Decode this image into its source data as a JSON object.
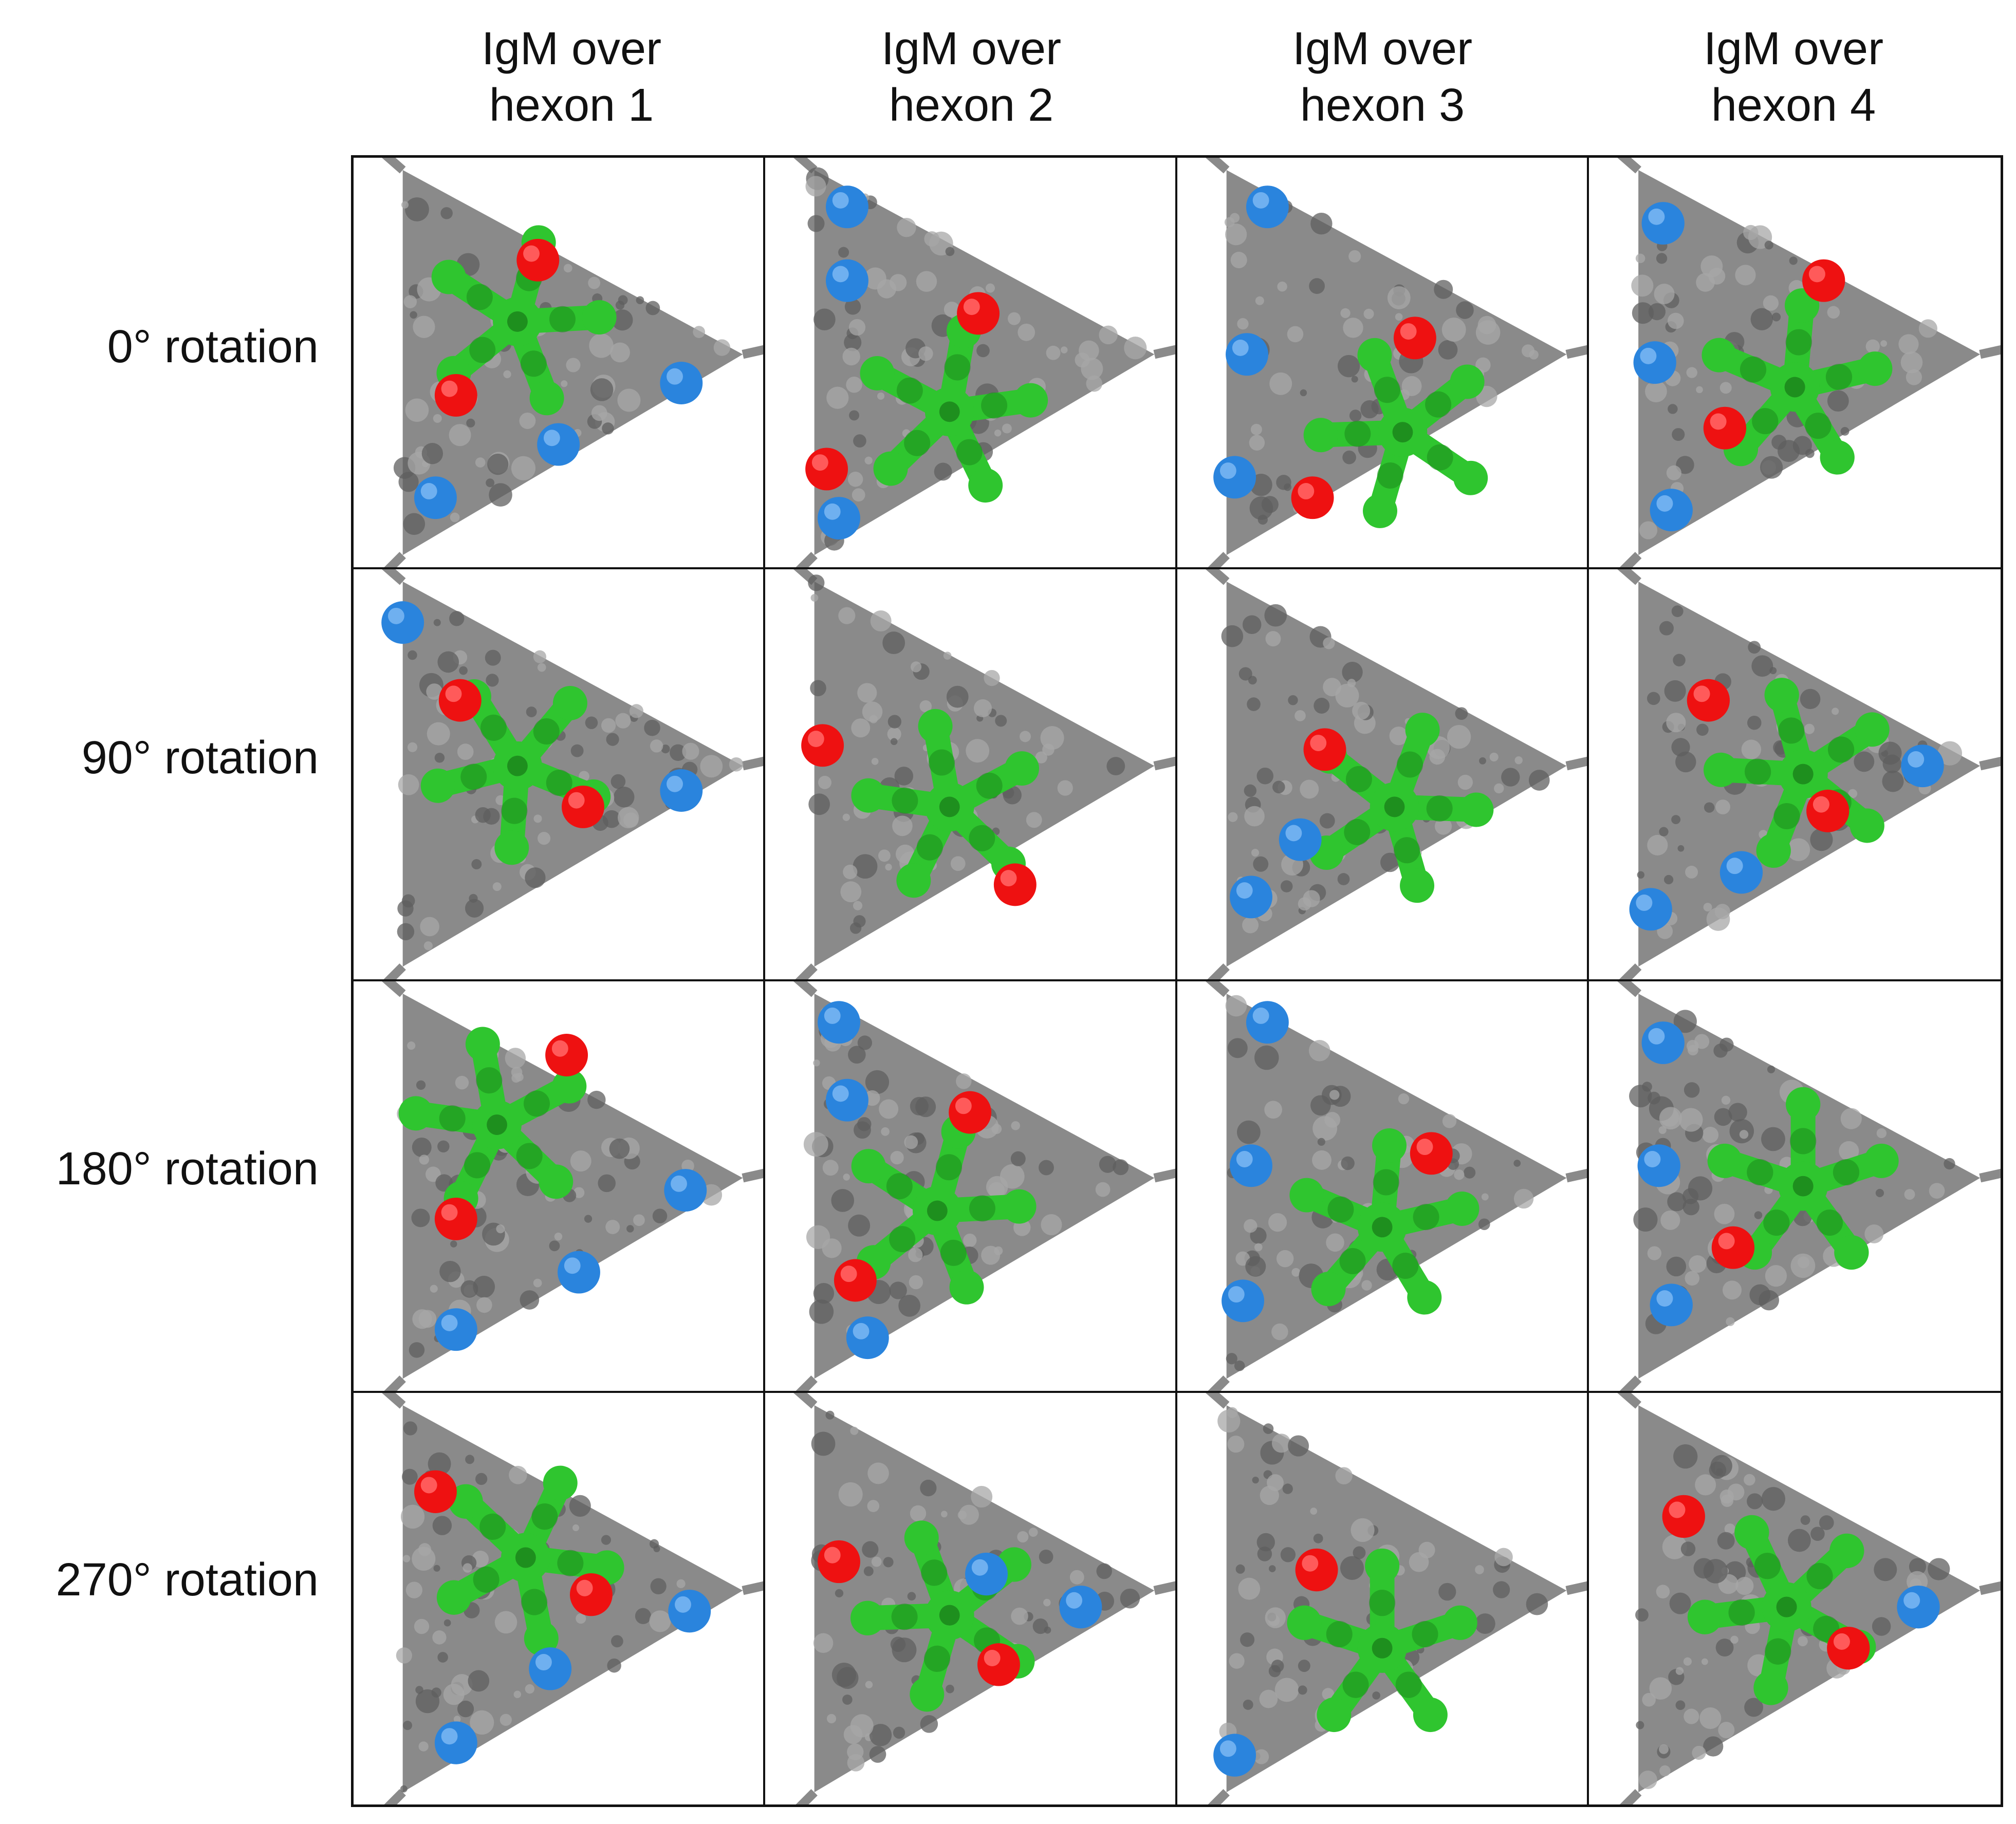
{
  "column_headers": [
    [
      "IgM over",
      "hexon 1"
    ],
    [
      "IgM over",
      "hexon 2"
    ],
    [
      "IgM over",
      "hexon 3"
    ],
    [
      "IgM over",
      "hexon 4"
    ]
  ],
  "row_labels": [
    "0° rotation",
    "90° rotation",
    "180° rotation",
    "270° rotation"
  ],
  "colors": {
    "capsid": "#8a8a8a",
    "capsid_dark": "#5f5f5f",
    "igm": "#2fc52f",
    "igm_dark": "#1e8f1e",
    "red_site": "#ee1111",
    "blue_site": "#2a84dd"
  },
  "legend_note": ""
}
